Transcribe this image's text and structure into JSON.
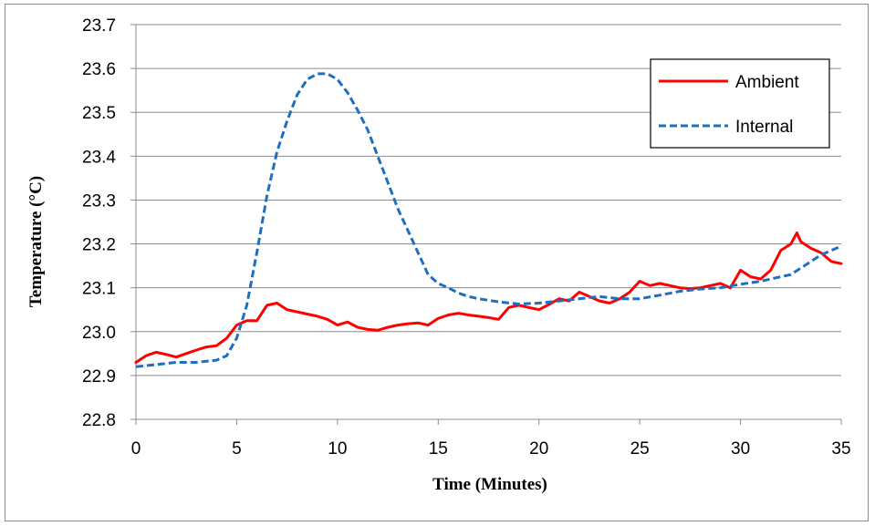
{
  "chart_data": {
    "type": "line",
    "title": "",
    "xlabel": "Time (Minutes)",
    "ylabel": "Temperature (°C)",
    "xlim": [
      0,
      35
    ],
    "ylim": [
      22.8,
      23.7
    ],
    "x_ticks": [
      "0",
      "5",
      "10",
      "15",
      "20",
      "25",
      "30",
      "35"
    ],
    "y_ticks": [
      "22.8",
      "22.9",
      "23.0",
      "23.1",
      "23.2",
      "23.3",
      "23.4",
      "23.5",
      "23.6",
      "23.7"
    ],
    "grid": "horizontal",
    "legend_position": "top-right",
    "series": [
      {
        "name": "Ambient",
        "color": "#ff0000",
        "style": "solid",
        "x": [
          0,
          0.5,
          1,
          1.5,
          2,
          2.5,
          3,
          3.5,
          4,
          4.5,
          5,
          5.5,
          6,
          6.5,
          7,
          7.5,
          8,
          8.5,
          9,
          9.5,
          10,
          10.5,
          11,
          11.5,
          12,
          12.5,
          13,
          13.5,
          14,
          14.5,
          15,
          15.5,
          16,
          16.5,
          17,
          17.5,
          18,
          18.5,
          19,
          19.5,
          20,
          20.5,
          21,
          21.5,
          22,
          22.5,
          23,
          23.5,
          24,
          24.5,
          25,
          25.5,
          26,
          26.5,
          27,
          27.5,
          28,
          28.5,
          29,
          29.5,
          30,
          30.5,
          31,
          31.5,
          32,
          32.5,
          32.8,
          33,
          33.5,
          34,
          34.5,
          35
        ],
        "values": [
          22.93,
          22.945,
          22.953,
          22.948,
          22.942,
          22.95,
          22.958,
          22.965,
          22.968,
          22.985,
          23.015,
          23.025,
          23.025,
          23.06,
          23.065,
          23.05,
          23.045,
          23.04,
          23.035,
          23.028,
          23.015,
          23.022,
          23.01,
          23.005,
          23.003,
          23.01,
          23.015,
          23.018,
          23.02,
          23.015,
          23.03,
          23.038,
          23.042,
          23.038,
          23.035,
          23.032,
          23.028,
          23.055,
          23.06,
          23.055,
          23.05,
          23.062,
          23.075,
          23.07,
          23.09,
          23.08,
          23.07,
          23.065,
          23.075,
          23.09,
          23.115,
          23.105,
          23.11,
          23.105,
          23.1,
          23.098,
          23.1,
          23.105,
          23.11,
          23.1,
          23.14,
          23.125,
          23.12,
          23.14,
          23.185,
          23.2,
          23.225,
          23.205,
          23.19,
          23.18,
          23.16,
          23.155
        ]
      },
      {
        "name": "Internal",
        "color": "#1f6fc0",
        "style": "dashed",
        "x": [
          0,
          1,
          2,
          3,
          4,
          4.5,
          5,
          5.5,
          6,
          6.5,
          7,
          7.5,
          8,
          8.5,
          9,
          9.5,
          10,
          10.5,
          11,
          11.5,
          12,
          12.5,
          13,
          13.5,
          14,
          14.5,
          15,
          15.5,
          16,
          16.5,
          17,
          18,
          19,
          20,
          21,
          22,
          23,
          24,
          25,
          26,
          27,
          28,
          29,
          30,
          31,
          32,
          32.5,
          33,
          34,
          35
        ],
        "values": [
          22.92,
          22.925,
          22.93,
          22.93,
          22.935,
          22.945,
          22.985,
          23.06,
          23.18,
          23.31,
          23.41,
          23.48,
          23.54,
          23.575,
          23.588,
          23.588,
          23.575,
          23.545,
          23.505,
          23.46,
          23.4,
          23.34,
          23.28,
          23.23,
          23.18,
          23.13,
          23.11,
          23.1,
          23.088,
          23.08,
          23.075,
          23.068,
          23.063,
          23.065,
          23.07,
          23.075,
          23.08,
          23.075,
          23.075,
          23.083,
          23.092,
          23.097,
          23.1,
          23.108,
          23.115,
          23.125,
          23.13,
          23.145,
          23.175,
          23.195
        ]
      }
    ]
  }
}
